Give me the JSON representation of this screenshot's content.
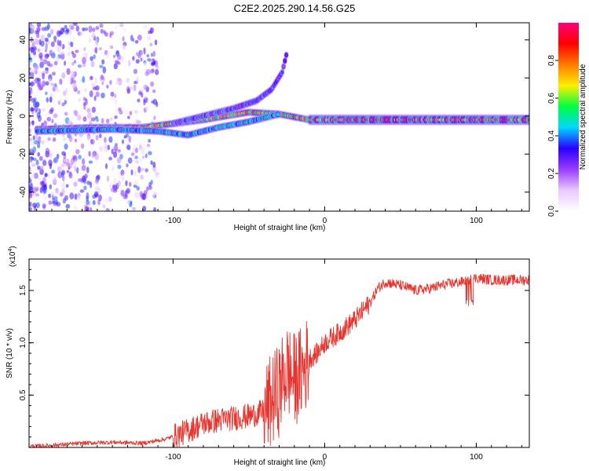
{
  "figure_title": "C2E2.2025.290.14.56.G25",
  "colors": {
    "signal_line": "#e8342e",
    "frame": "#000000"
  },
  "chart_data": [
    {
      "type": "heatmap",
      "name": "spectrogram",
      "xlabel": "Height of straight line (km)",
      "ylabel": "Frequency (Hz)",
      "xlim": [
        -195,
        135
      ],
      "ylim": [
        -50,
        49
      ],
      "xticks": [
        {
          "v": -100,
          "label": "-100"
        },
        {
          "v": 0,
          "label": "0"
        },
        {
          "v": 100,
          "label": "100"
        }
      ],
      "yticks": [
        {
          "v": 40,
          "label": "40"
        },
        {
          "v": 20,
          "label": "20"
        },
        {
          "v": 0,
          "label": "0"
        },
        {
          "v": -20,
          "label": "-20"
        },
        {
          "v": -40,
          "label": "-40"
        }
      ],
      "colorbar": {
        "label": "Normalized spectral amplitude",
        "range": [
          0,
          1
        ],
        "ticks": [
          {
            "v": 0.0,
            "label": "0.0"
          },
          {
            "v": 0.2,
            "label": "0.2"
          },
          {
            "v": 0.4,
            "label": "0.4"
          },
          {
            "v": 0.6,
            "label": "0.6"
          },
          {
            "v": 0.8,
            "label": "0.8"
          }
        ],
        "stops": [
          "#ffffff",
          "#e9c8ff",
          "#9a3cff",
          "#2a00ff",
          "#00d8ff",
          "#00ff40",
          "#ffee00",
          "#ff7a00",
          "#ff0000",
          "#ff007a"
        ]
      },
      "ridges": [
        {
          "name": "main-carrier",
          "points": [
            [
              -190,
              -7
            ],
            [
              -150,
              -6
            ],
            [
              -120,
              -6
            ],
            [
              -100,
              -4
            ],
            [
              -80,
              -2
            ],
            [
              -50,
              2
            ],
            [
              -30,
              1
            ],
            [
              -10,
              -2
            ],
            [
              0,
              -2
            ],
            [
              40,
              -2
            ],
            [
              80,
              -2
            ],
            [
              135,
              -2
            ]
          ],
          "amp": 0.85
        },
        {
          "name": "lower-branch",
          "points": [
            [
              -190,
              -8
            ],
            [
              -140,
              -7
            ],
            [
              -110,
              -8
            ],
            [
              -90,
              -10
            ],
            [
              -70,
              -6
            ],
            [
              -50,
              -3
            ],
            [
              -30,
              1
            ]
          ],
          "amp": 0.55
        },
        {
          "name": "upper-branch",
          "points": [
            [
              -100,
              -4
            ],
            [
              -80,
              0
            ],
            [
              -60,
              4
            ],
            [
              -45,
              8
            ],
            [
              -35,
              14
            ],
            [
              -28,
              23
            ],
            [
              -25,
              33
            ]
          ],
          "amp": 0.3
        }
      ]
    },
    {
      "type": "line",
      "name": "snr",
      "xlabel": "Height of straight line (km)",
      "ylabel": "SNR (10 * v/v)",
      "scale_label": "(x10",
      "scale_exponent": "4",
      "xlim": [
        -195,
        135
      ],
      "ylim": [
        0,
        1.8
      ],
      "xticks": [
        {
          "v": -100,
          "label": "-100"
        },
        {
          "v": 0,
          "label": "0"
        },
        {
          "v": 100,
          "label": "100"
        }
      ],
      "yticks": [
        {
          "v": 0.5,
          "label": "0.5"
        },
        {
          "v": 1.0,
          "label": "1.0"
        },
        {
          "v": 1.5,
          "label": "1.5"
        }
      ],
      "x": [
        -195,
        -180,
        -160,
        -140,
        -120,
        -105,
        -95,
        -80,
        -70,
        -60,
        -50,
        -40,
        -30,
        -25,
        -20,
        -15,
        -10,
        -5,
        0,
        10,
        20,
        30,
        35,
        40,
        50,
        60,
        70,
        80,
        90,
        95,
        100,
        110,
        120,
        135
      ],
      "values": [
        0.01,
        0.02,
        0.04,
        0.05,
        0.04,
        0.08,
        0.13,
        0.23,
        0.26,
        0.28,
        0.3,
        0.34,
        0.55,
        0.75,
        0.65,
        0.72,
        0.85,
        0.9,
        1.0,
        1.1,
        1.22,
        1.38,
        1.52,
        1.58,
        1.55,
        1.5,
        1.52,
        1.56,
        1.58,
        1.6,
        1.62,
        1.6,
        1.6,
        1.6
      ]
    }
  ]
}
